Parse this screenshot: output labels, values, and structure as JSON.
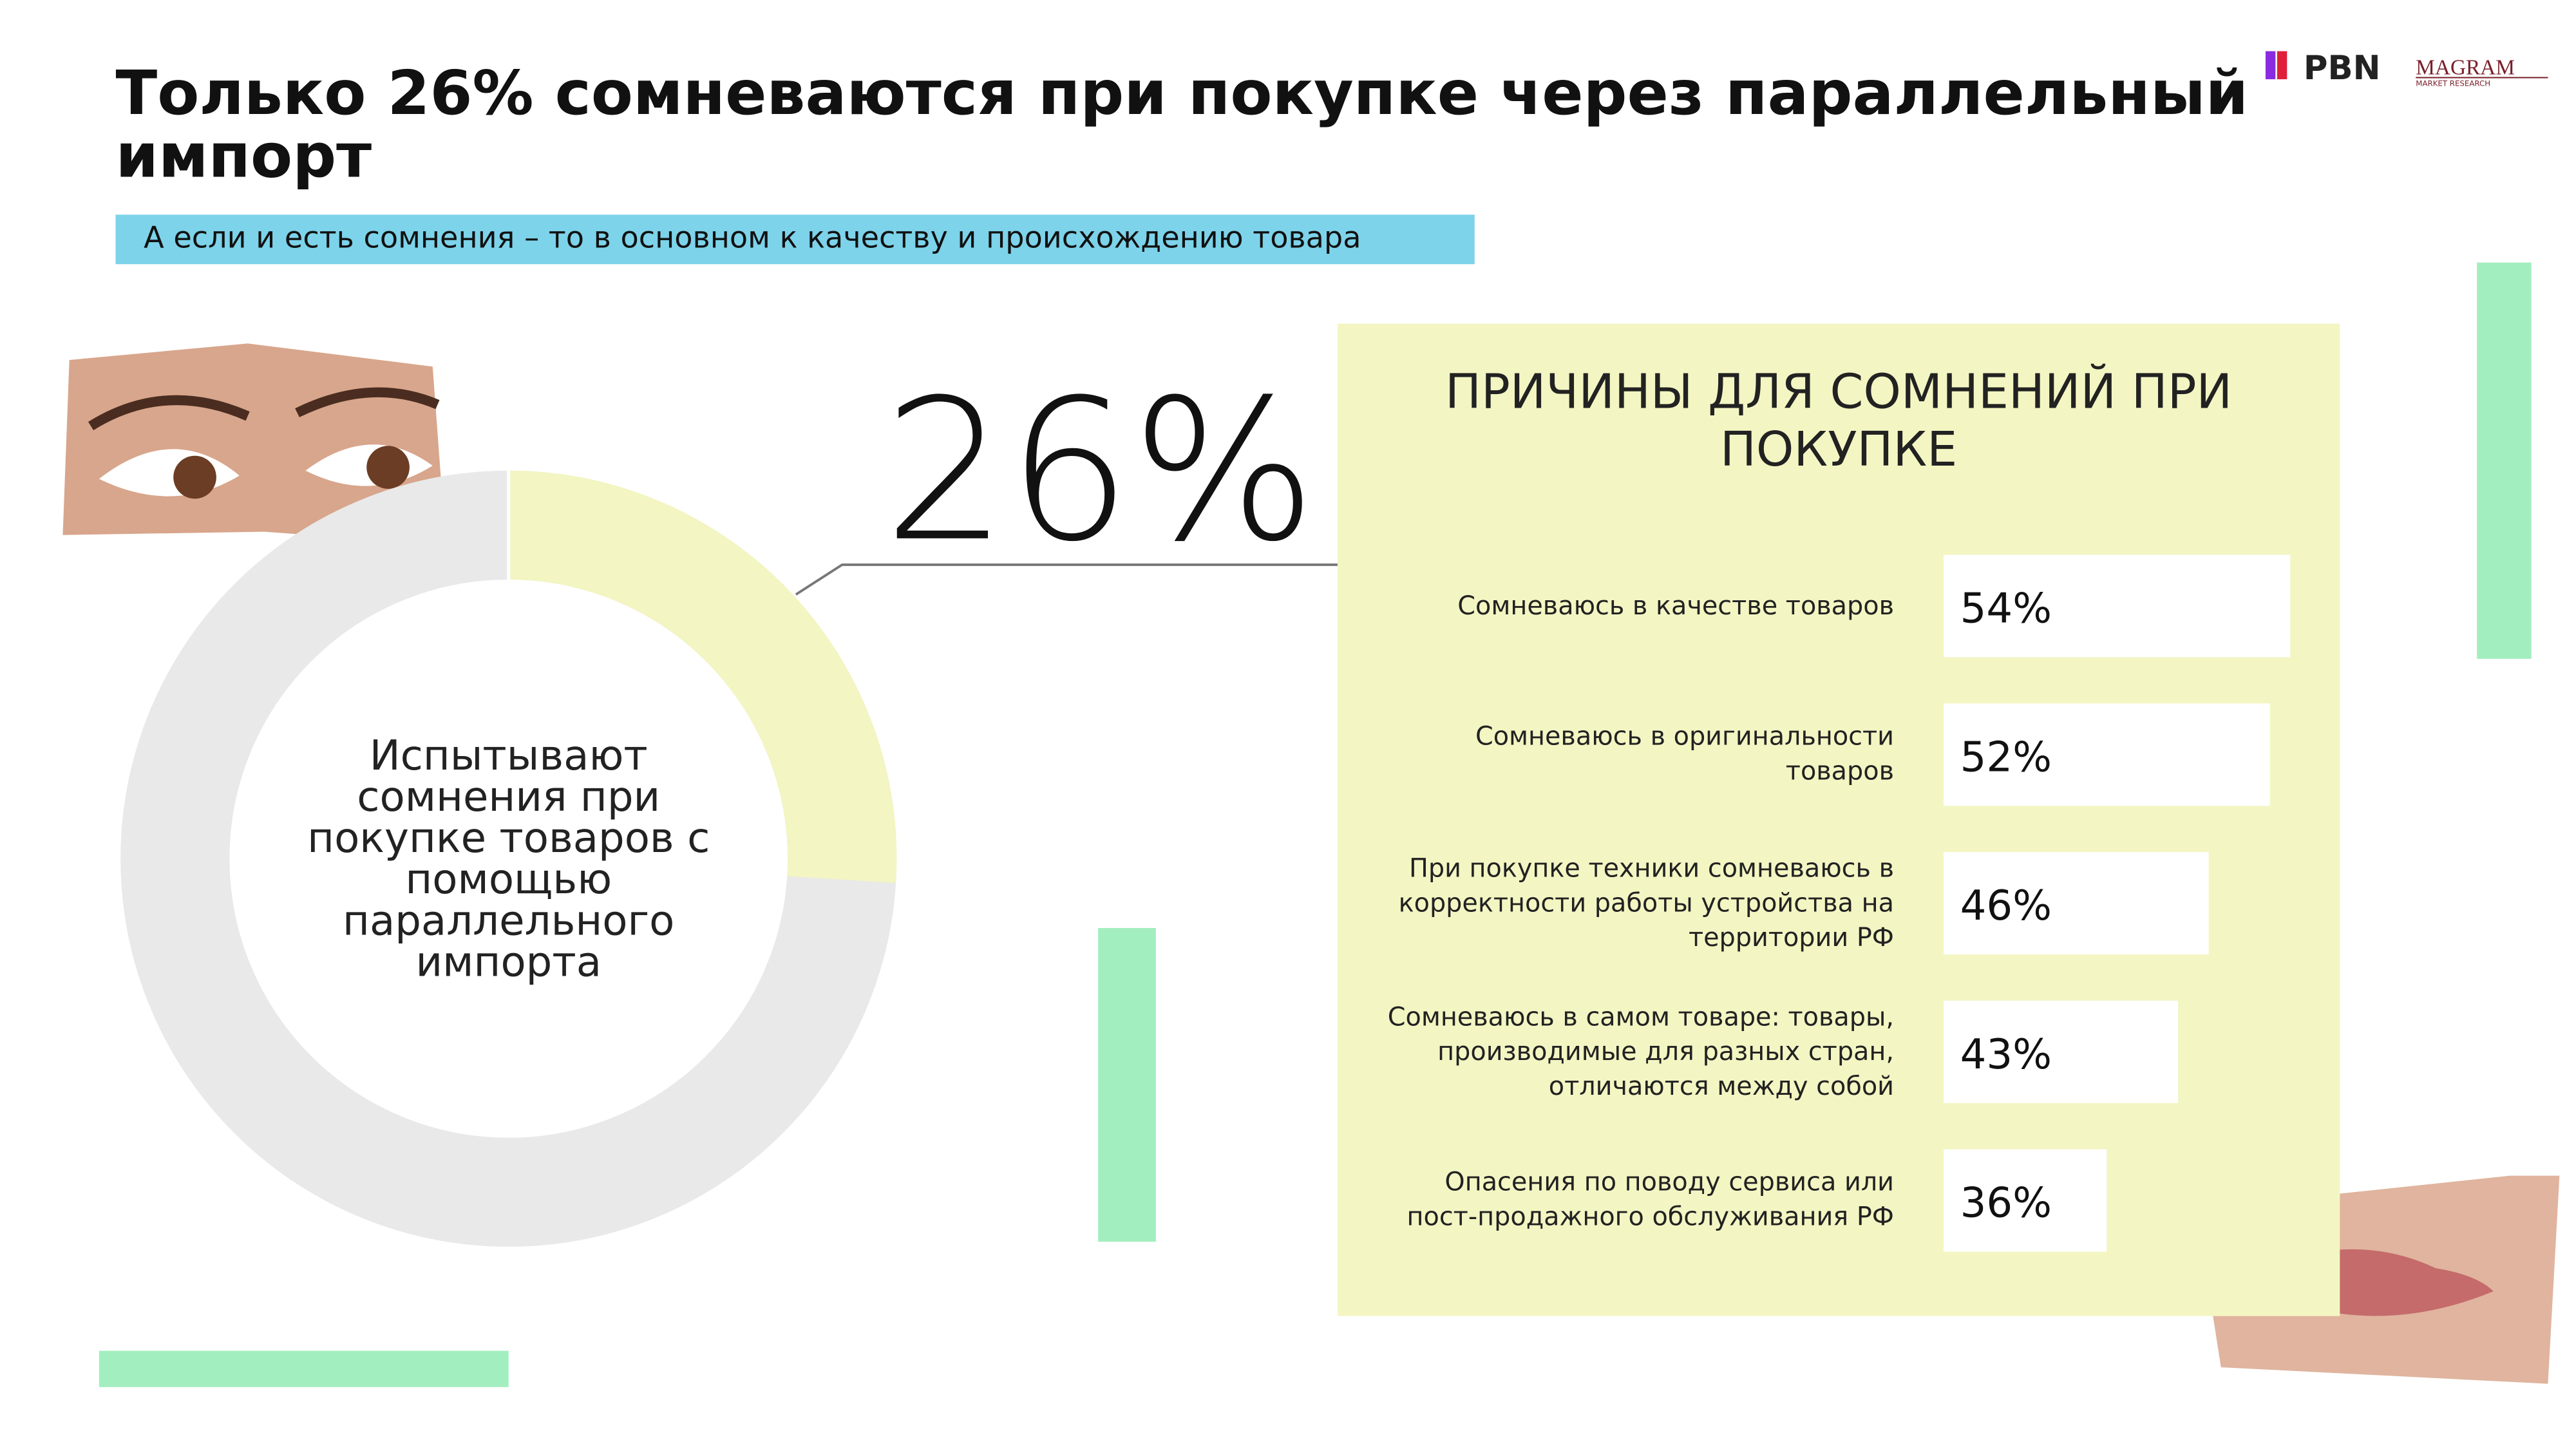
{
  "title": "Только 26% сомневаются при покупке через параллельный импорт",
  "subtitle": "А если и есть сомнения – то в основном к качеству и происхождению товара",
  "logos": [
    "PBN",
    "MAGRAM",
    "MARKET RESEARCH"
  ],
  "chart_data": [
    {
      "type": "donut",
      "center_label": "Испытывают сомнения при покупке товаров с помощью параллельного импорта",
      "values": [
        26
      ],
      "value_labels": [
        "26%"
      ],
      "colors": [
        "#f3f5c2"
      ],
      "track_color": "#e9e9e9"
    },
    {
      "type": "bar",
      "orientation": "horizontal",
      "title": "ПРИЧИНЫ ДЛЯ СОМНЕНИЙ ПРИ ПОКУПКЕ",
      "categories": [
        "Сомневаюсь в качестве товаров",
        "Сомневаюсь в оригинальности товаров",
        "При покупке техники сомневаюсь в корректности работы устройства на территории РФ",
        "Сомневаюсь в самом товаре: товары, производимые для разных стран, отличаются между собой",
        "Опасения по поводу сервиса или пост-продажного обслуживания РФ"
      ],
      "values": [
        54,
        52,
        46,
        43,
        36
      ],
      "value_labels": [
        "54%",
        "52%",
        "46%",
        "43%",
        "36%"
      ],
      "color": "#ffffff",
      "background": "#f3f6c3",
      "xlim": [
        20,
        60
      ]
    }
  ]
}
